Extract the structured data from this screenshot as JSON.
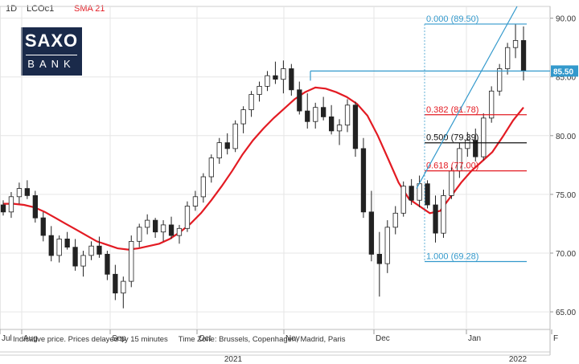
{
  "header": {
    "interval": "1D",
    "symbol": "LCOc1",
    "indicator": "SMA 21"
  },
  "logo": {
    "line1": "SAXO",
    "line2": "BANK"
  },
  "footer": {
    "disclaimer": "Indicative price. Prices delayed by 15 minutes",
    "timezone": "Time Zone: Brussels, Copenhagen, Madrid, Paris"
  },
  "colors": {
    "up": "#ffffff",
    "down": "#222222",
    "sma": "#e31b23",
    "fib_red": "#e31b23",
    "fib_blue": "#3399cc",
    "fib_black": "#111111",
    "price_tag": "#3399cc"
  },
  "chart_data": {
    "type": "candlestick",
    "ylim": [
      63.5,
      91
    ],
    "y_ticks": [
      "65.00",
      "70.00",
      "75.00",
      "80.00",
      "85.00",
      "90.00"
    ],
    "x_ticks": [
      "Jul",
      "Aug",
      "Sep",
      "Oct",
      "Nov",
      "Dec",
      "Jan",
      "F"
    ],
    "x_year_labels": [
      "2021",
      "2022"
    ],
    "last_price_label": "85.50",
    "last_price": 85.5,
    "fib_levels": [
      {
        "label": "0.000 (89.50)",
        "value": 89.5,
        "color": "blue"
      },
      {
        "label": "0.382 (81.78)",
        "value": 81.78,
        "color": "red"
      },
      {
        "label": "0.500 (79.39)",
        "value": 79.39,
        "color": "black"
      },
      {
        "label": "0.618 (77.00)",
        "value": 77.0,
        "color": "red"
      },
      {
        "label": "1.000 (69.28)",
        "value": 69.28,
        "color": "blue"
      }
    ],
    "horizontal_line": 85.5,
    "trend_line": {
      "from": 75.5,
      "to": 91.0
    },
    "series": [
      {
        "name": "SMA 21",
        "values": [
          74.2,
          74.2,
          74.1,
          73.9,
          73.5,
          73.0,
          72.5,
          72.0,
          71.5,
          71.0,
          70.7,
          70.4,
          70.3,
          70.4,
          70.6,
          70.8,
          71.2,
          71.8,
          72.5,
          73.4,
          74.5,
          75.7,
          77.0,
          78.4,
          79.6,
          80.6,
          81.5,
          82.3,
          83.1,
          83.7,
          84.1,
          84.0,
          83.7,
          83.3,
          82.7,
          81.7,
          80.0,
          78.0,
          76.0,
          74.6,
          74.0,
          73.4,
          73.6,
          74.8,
          76.0,
          77.0,
          77.8,
          78.6,
          79.9,
          81.3,
          82.4
        ]
      }
    ],
    "candles": [
      [
        74.1,
        74.5,
        73.2,
        73.5
      ],
      [
        73.5,
        75.2,
        73.0,
        74.8
      ],
      [
        74.8,
        76.0,
        74.2,
        75.5
      ],
      [
        75.5,
        76.2,
        74.6,
        74.9
      ],
      [
        74.9,
        75.3,
        72.6,
        73.0
      ],
      [
        73.0,
        73.5,
        71.0,
        71.5
      ],
      [
        71.5,
        72.3,
        69.3,
        69.8
      ],
      [
        69.8,
        71.5,
        69.2,
        71.2
      ],
      [
        71.2,
        71.8,
        70.3,
        70.5
      ],
      [
        70.5,
        71.2,
        68.5,
        68.9
      ],
      [
        68.9,
        70.2,
        68.0,
        69.8
      ],
      [
        69.8,
        71.0,
        69.4,
        70.6
      ],
      [
        70.6,
        71.4,
        69.6,
        69.9
      ],
      [
        69.9,
        70.2,
        67.7,
        68.2
      ],
      [
        68.2,
        69.0,
        66.0,
        66.6
      ],
      [
        66.6,
        68.0,
        65.3,
        67.6
      ],
      [
        67.6,
        71.5,
        67.1,
        71.0
      ],
      [
        71.0,
        72.5,
        70.5,
        72.2
      ],
      [
        72.2,
        73.3,
        71.6,
        72.8
      ],
      [
        72.8,
        73.0,
        71.3,
        71.8
      ],
      [
        71.8,
        72.8,
        71.0,
        72.4
      ],
      [
        72.4,
        73.1,
        71.2,
        71.5
      ],
      [
        71.5,
        72.4,
        70.8,
        72.1
      ],
      [
        72.1,
        74.4,
        71.8,
        74.0
      ],
      [
        74.0,
        75.3,
        73.6,
        74.8
      ],
      [
        74.8,
        76.8,
        74.3,
        76.5
      ],
      [
        76.5,
        78.4,
        76.0,
        78.1
      ],
      [
        78.1,
        79.8,
        77.6,
        79.4
      ],
      [
        79.4,
        80.2,
        78.4,
        78.9
      ],
      [
        78.9,
        81.3,
        78.6,
        81.0
      ],
      [
        81.0,
        82.5,
        80.2,
        82.2
      ],
      [
        82.2,
        83.8,
        81.6,
        83.5
      ],
      [
        83.5,
        84.6,
        82.9,
        84.2
      ],
      [
        84.2,
        85.5,
        83.8,
        85.1
      ],
      [
        85.1,
        86.3,
        84.4,
        84.8
      ],
      [
        84.8,
        86.4,
        83.6,
        85.7
      ],
      [
        85.7,
        86.1,
        83.4,
        83.9
      ],
      [
        83.9,
        84.6,
        81.8,
        82.1
      ],
      [
        82.1,
        83.6,
        80.6,
        81.2
      ],
      [
        81.2,
        82.8,
        80.6,
        82.4
      ],
      [
        82.4,
        83.3,
        81.3,
        81.6
      ],
      [
        81.6,
        82.6,
        80.1,
        80.4
      ],
      [
        80.4,
        81.4,
        79.2,
        80.9
      ],
      [
        80.9,
        83.1,
        80.3,
        82.6
      ],
      [
        82.6,
        82.9,
        78.2,
        78.9
      ],
      [
        78.9,
        79.8,
        73.0,
        73.5
      ],
      [
        73.5,
        75.3,
        69.3,
        69.9
      ],
      [
        69.9,
        71.8,
        66.3,
        69.1
      ],
      [
        69.1,
        72.8,
        68.3,
        72.2
      ],
      [
        72.2,
        74.0,
        71.6,
        73.4
      ],
      [
        73.4,
        76.1,
        73.1,
        75.7
      ],
      [
        75.7,
        76.3,
        74.1,
        74.5
      ],
      [
        74.5,
        76.6,
        73.9,
        75.9
      ],
      [
        75.9,
        76.2,
        73.8,
        74.1
      ],
      [
        74.1,
        74.9,
        70.9,
        71.7
      ],
      [
        71.7,
        75.4,
        71.3,
        74.9
      ],
      [
        74.9,
        77.3,
        74.6,
        77.0
      ],
      [
        77.0,
        79.4,
        76.4,
        78.9
      ],
      [
        78.9,
        80.3,
        78.2,
        79.6
      ],
      [
        79.6,
        80.6,
        77.8,
        78.2
      ],
      [
        78.2,
        81.9,
        77.9,
        81.5
      ],
      [
        81.5,
        84.2,
        81.1,
        83.8
      ],
      [
        83.8,
        86.1,
        83.4,
        85.7
      ],
      [
        85.7,
        87.9,
        85.2,
        87.5
      ],
      [
        87.5,
        89.5,
        86.6,
        88.1
      ],
      [
        88.1,
        89.3,
        84.7,
        85.5
      ]
    ]
  }
}
